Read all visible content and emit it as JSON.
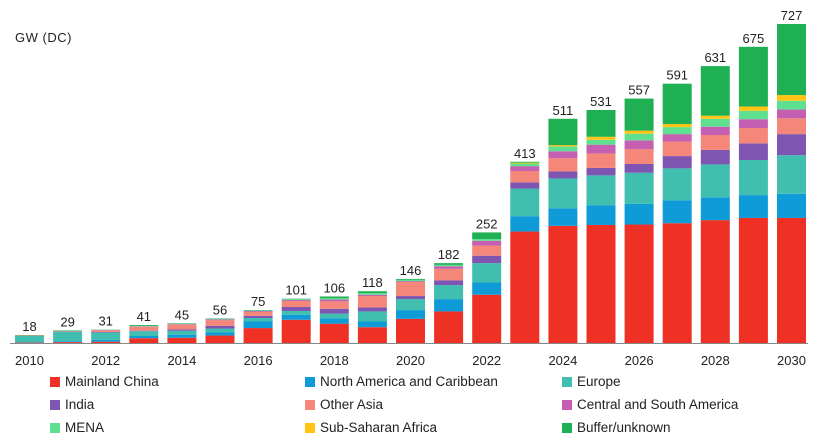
{
  "chart_data": {
    "type": "bar",
    "stacked": true,
    "ylabel": "GW (DC)",
    "ylim": [
      0,
      727
    ],
    "x_tick_labels": [
      "2010",
      "2012",
      "2014",
      "2016",
      "2018",
      "2020",
      "2022",
      "2024",
      "2026",
      "2028",
      "2030"
    ],
    "categories": [
      "2010",
      "2011",
      "2012",
      "2013",
      "2014",
      "2015",
      "2016",
      "2017",
      "2018",
      "2019",
      "2020",
      "2021",
      "2022",
      "2023",
      "2024",
      "2025",
      "2026",
      "2027",
      "2028",
      "2029",
      "2030"
    ],
    "totals": [
      18,
      29,
      31,
      41,
      45,
      56,
      75,
      101,
      106,
      118,
      146,
      182,
      252,
      413,
      511,
      531,
      557,
      591,
      631,
      675,
      727
    ],
    "series": [
      {
        "name": "Mainland China",
        "color": "#ee3124",
        "values": [
          1,
          2,
          3,
          11,
          12,
          17,
          34,
          53,
          44,
          36,
          55,
          72,
          110,
          254,
          267,
          269,
          270,
          273,
          280,
          285,
          285
        ]
      },
      {
        "name": "North America and Caribbean",
        "color": "#0f9ad8",
        "values": [
          1,
          2,
          4,
          5,
          7,
          7,
          15,
          11,
          12,
          13,
          20,
          28,
          28,
          35,
          40,
          45,
          47,
          52,
          52,
          52,
          55
        ]
      },
      {
        "name": "Europe",
        "color": "#40beb0",
        "values": [
          14,
          21,
          17,
          11,
          9,
          9,
          8,
          9,
          11,
          23,
          25,
          32,
          44,
          63,
          68,
          68,
          71,
          73,
          75,
          80,
          88
        ]
      },
      {
        "name": "India",
        "color": "#7f55b2",
        "values": [
          0,
          1,
          1,
          1,
          3,
          6,
          5,
          9,
          11,
          9,
          7,
          11,
          17,
          14,
          16,
          17,
          20,
          28,
          33,
          38,
          48
        ]
      },
      {
        "name": "Other Asia",
        "color": "#f4877a",
        "values": [
          1,
          1,
          4,
          9,
          11,
          13,
          9,
          14,
          17,
          26,
          32,
          26,
          23,
          26,
          30,
          33,
          34,
          33,
          34,
          35,
          36
        ]
      },
      {
        "name": "Central and South America",
        "color": "#c45fb2",
        "values": [
          0,
          0,
          1,
          1,
          1,
          2,
          2,
          2,
          4,
          3,
          2,
          6,
          11,
          11,
          16,
          20,
          20,
          17,
          19,
          20,
          20
        ]
      },
      {
        "name": "MENA",
        "color": "#5fe090",
        "values": [
          0,
          1,
          1,
          1,
          1,
          1,
          1,
          2,
          3,
          4,
          3,
          3,
          4,
          6,
          11,
          11,
          15,
          16,
          18,
          19,
          20
        ]
      },
      {
        "name": "Sub-Saharan Africa",
        "color": "#ffc414",
        "values": [
          0,
          0,
          0,
          0,
          0,
          0,
          0,
          0,
          0,
          0,
          0,
          0,
          0,
          2,
          3,
          7,
          7,
          7,
          7,
          10,
          13
        ]
      },
      {
        "name": "Buffer/unknown",
        "color": "#1eb053",
        "values": [
          1,
          1,
          0,
          2,
          1,
          1,
          1,
          1,
          4,
          4,
          2,
          4,
          15,
          2,
          60,
          61,
          73,
          92,
          113,
          136,
          162
        ]
      }
    ],
    "legend_position": "bottom",
    "grid": false
  }
}
